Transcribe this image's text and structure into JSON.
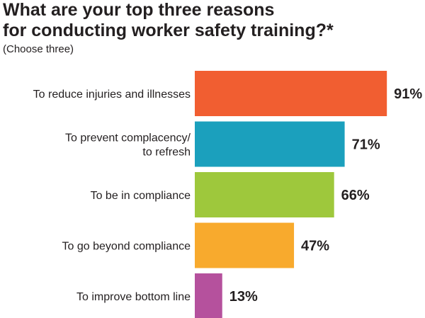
{
  "header": {
    "title_line1": "What are your top three reasons",
    "title_line2": "for conducting worker safety training?*",
    "subtitle": "(Choose three)"
  },
  "chart_data": {
    "type": "bar",
    "orientation": "horizontal",
    "title": "What are your top three reasons for conducting worker safety training?*",
    "subtitle": "(Choose three)",
    "categories": [
      [
        "To reduce injuries and illnesses"
      ],
      [
        "To prevent complacency/",
        "to refresh"
      ],
      [
        "To be in compliance"
      ],
      [
        "To go beyond compliance"
      ],
      [
        "To improve bottom line"
      ]
    ],
    "values": [
      91,
      71,
      66,
      47,
      13
    ],
    "value_labels": [
      "91%",
      "71%",
      "66%",
      "47%",
      "13%"
    ],
    "colors": [
      "#f15e31",
      "#1ba0bd",
      "#9ec83c",
      "#f8aa2d",
      "#b5519d"
    ],
    "xlim": [
      0,
      100
    ],
    "grid": false,
    "legend": "none"
  }
}
